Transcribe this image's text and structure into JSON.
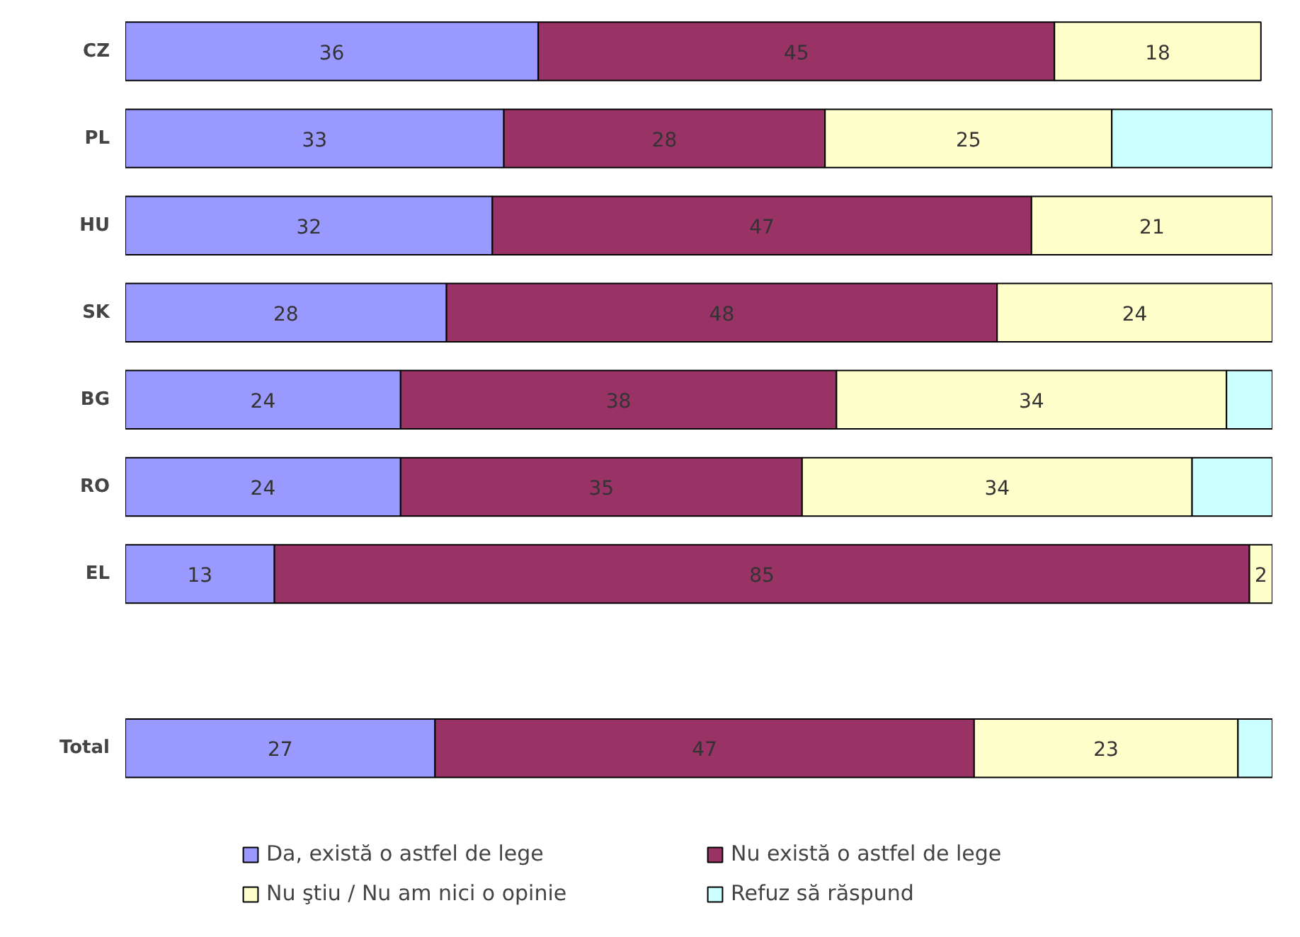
{
  "chart_data": {
    "type": "bar",
    "orientation": "horizontal",
    "stacked": true,
    "categories": [
      "CZ",
      "PL",
      "HU",
      "SK",
      "BG",
      "RO",
      "EL",
      null,
      "Total"
    ],
    "xlim": [
      0,
      100
    ],
    "tick_labels": "y",
    "grid": false,
    "legend": "bottom",
    "series": [
      {
        "name": "Da, există o astfel de lege",
        "color": "#9999ff",
        "values": [
          36,
          33,
          32,
          28,
          24,
          24,
          13,
          null,
          27
        ],
        "value_labels": [
          "36",
          "33",
          "32",
          "28",
          "24",
          "24",
          "13",
          null,
          "27"
        ]
      },
      {
        "name": "Nu există o astfel de lege",
        "color": "#993366",
        "values": [
          45,
          28,
          47,
          48,
          38,
          35,
          85,
          null,
          47
        ],
        "value_labels": [
          "45",
          "28",
          "47",
          "48",
          "38",
          "35",
          "85",
          null,
          "47"
        ]
      },
      {
        "name": "Nu ştiu / Nu am nici o opinie",
        "color": "#ffffcc",
        "values": [
          18,
          25,
          21,
          24,
          34,
          34,
          2,
          null,
          23
        ],
        "value_labels": [
          "18",
          "25",
          "21",
          "24",
          "34",
          "34",
          "2",
          null,
          "23"
        ]
      },
      {
        "name": "Refuz să răspund",
        "color": "#ccffff",
        "values": [
          null,
          14,
          null,
          null,
          4,
          7,
          null,
          null,
          3
        ],
        "value_labels": [
          null,
          null,
          null,
          null,
          null,
          null,
          null,
          null,
          null
        ]
      }
    ]
  }
}
